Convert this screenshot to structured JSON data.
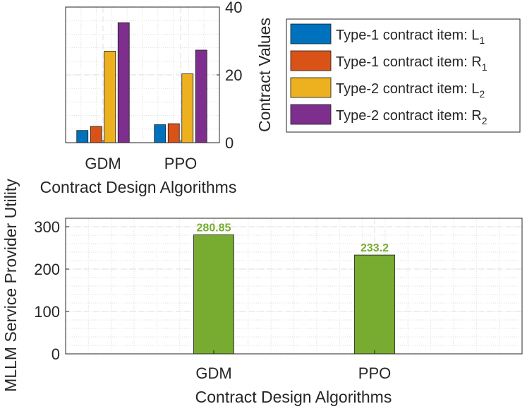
{
  "chart_data": [
    {
      "type": "bar",
      "title": "",
      "xlabel": "Contract Design Algorithms",
      "ylabel": "Contract Values",
      "ylabel_position": "right",
      "categories": [
        "GDM",
        "PPO"
      ],
      "ylim": [
        0,
        40
      ],
      "yticks": [
        "0",
        "20",
        "40"
      ],
      "grid": true,
      "legend_position": "right",
      "series": [
        {
          "name": "Type-1 contract item: L",
          "sub": "1",
          "color": "#0072BD",
          "values": [
            3.6,
            5.3
          ]
        },
        {
          "name": "Type-1 contract item: R",
          "sub": "1",
          "color": "#D95319",
          "values": [
            4.8,
            5.6
          ]
        },
        {
          "name": "Type-2 contract item: L",
          "sub": "2",
          "color": "#EDB120",
          "values": [
            27.0,
            20.3
          ]
        },
        {
          "name": "Type-2 contract item: R",
          "sub": "2",
          "color": "#7E2F8E",
          "values": [
            35.4,
            27.3
          ]
        }
      ]
    },
    {
      "type": "bar",
      "title": "",
      "xlabel": "Contract Design Algorithms",
      "ylabel": "MLLM Service Provider Utility",
      "categories": [
        "GDM",
        "PPO"
      ],
      "ylim": [
        0,
        320
      ],
      "yticks": [
        "0",
        "100",
        "200",
        "300"
      ],
      "grid": true,
      "series": [
        {
          "name": "Utility",
          "color": "#77AC30",
          "values": [
            280.85,
            233.2
          ]
        }
      ],
      "data_labels": [
        "280.85",
        "233.2"
      ],
      "data_label_color": "#77AC30"
    }
  ]
}
